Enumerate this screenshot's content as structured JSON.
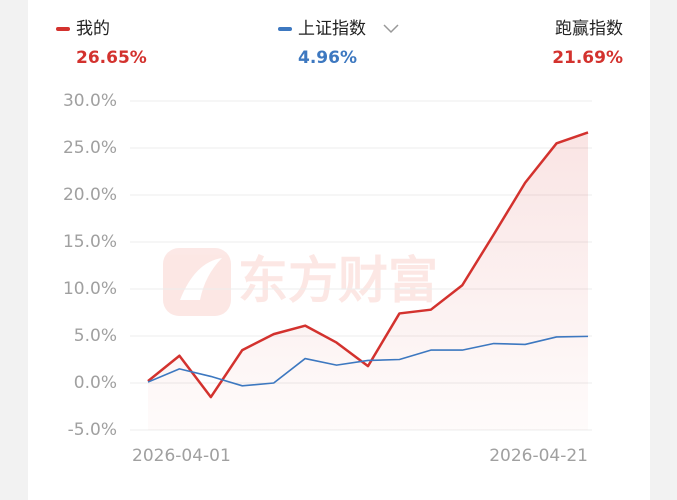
{
  "chart_data": {
    "type": "line",
    "categories": [
      "2026-04-01",
      null,
      null,
      null,
      null,
      null,
      null,
      null,
      null,
      null,
      null,
      null,
      null,
      null,
      "2026-04-21"
    ],
    "series": [
      {
        "name": "我的",
        "summary": "26.65%",
        "color": "#d3322e",
        "area": true,
        "values": [
          0.2,
          2.9,
          -1.5,
          3.5,
          5.2,
          6.1,
          4.3,
          1.8,
          7.4,
          7.8,
          10.4,
          15.8,
          21.3,
          25.5,
          26.65
        ]
      },
      {
        "name": "上证指数",
        "summary": "4.96%",
        "color": "#3d78c0",
        "values": [
          0.1,
          1.5,
          0.7,
          -0.3,
          0.0,
          2.6,
          1.9,
          2.4,
          2.5,
          3.5,
          3.5,
          4.2,
          4.1,
          4.9,
          4.96
        ]
      }
    ],
    "outperform": {
      "label": "跑赢指数",
      "value": "21.69%"
    },
    "watermark": "东方财富",
    "ylim": [
      -5,
      30
    ],
    "yticks": [
      {
        "value": -5,
        "label": "-5.0%"
      },
      {
        "value": 0,
        "label": "0.0%"
      },
      {
        "value": 5,
        "label": "5.0%"
      },
      {
        "value": 10,
        "label": "10.0%"
      },
      {
        "value": 15,
        "label": "15.0%"
      },
      {
        "value": 20,
        "label": "20.0%"
      },
      {
        "value": 25,
        "label": "25.0%"
      },
      {
        "value": 30,
        "label": "30.0%"
      }
    ],
    "grid": true
  }
}
